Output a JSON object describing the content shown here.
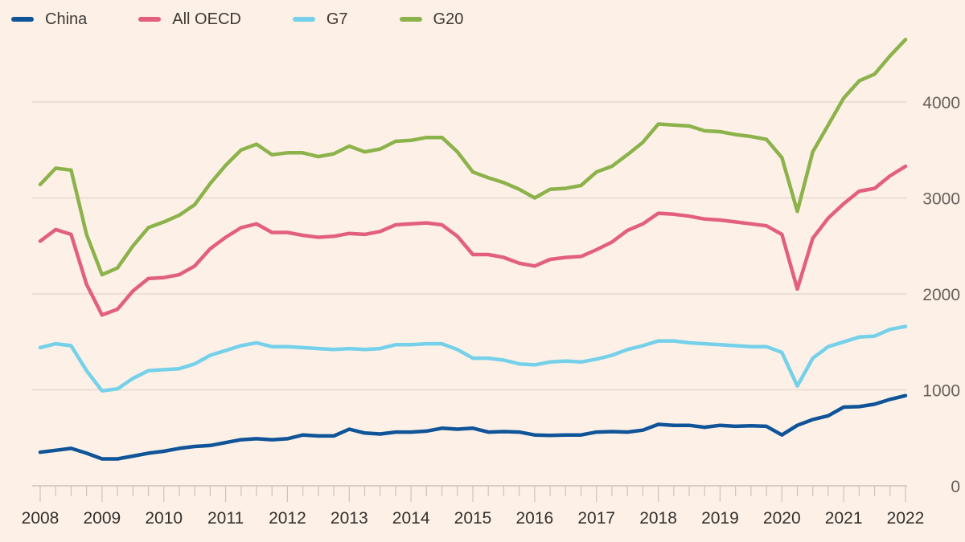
{
  "chart_data": {
    "type": "line",
    "title": "",
    "xlabel": "",
    "ylabel": "",
    "ylim": [
      0,
      4700
    ],
    "xlim": [
      2008,
      2022
    ],
    "y_ticks": [
      {
        "value": 0,
        "label": "0"
      },
      {
        "value": 1000,
        "label": "1000"
      },
      {
        "value": 2000,
        "label": "2000"
      },
      {
        "value": 3000,
        "label": "3000"
      },
      {
        "value": 4000,
        "label": "4000"
      }
    ],
    "x_ticks": [
      "2008",
      "2009",
      "2010",
      "2011",
      "2012",
      "2013",
      "2014",
      "2015",
      "2016",
      "2017",
      "2018",
      "2019",
      "2020",
      "2021",
      "2022"
    ],
    "x": [
      2008.0,
      2008.25,
      2008.5,
      2008.75,
      2009.0,
      2009.25,
      2009.5,
      2009.75,
      2010.0,
      2010.25,
      2010.5,
      2010.75,
      2011.0,
      2011.25,
      2011.5,
      2011.75,
      2012.0,
      2012.25,
      2012.5,
      2012.75,
      2013.0,
      2013.25,
      2013.5,
      2013.75,
      2014.0,
      2014.25,
      2014.5,
      2014.75,
      2015.0,
      2015.25,
      2015.5,
      2015.75,
      2016.0,
      2016.25,
      2016.5,
      2016.75,
      2017.0,
      2017.25,
      2017.5,
      2017.75,
      2018.0,
      2018.25,
      2018.5,
      2018.75,
      2019.0,
      2019.25,
      2019.5,
      2019.75,
      2020.0,
      2020.25,
      2020.5,
      2020.75,
      2021.0,
      2021.25,
      2021.5,
      2021.75,
      2022.0
    ],
    "series": [
      {
        "name": "China",
        "color": "#0f5499",
        "values": [
          350,
          370,
          390,
          340,
          280,
          280,
          310,
          340,
          360,
          390,
          410,
          420,
          450,
          480,
          490,
          480,
          490,
          530,
          520,
          520,
          590,
          550,
          540,
          560,
          560,
          570,
          600,
          590,
          600,
          560,
          565,
          560,
          530,
          525,
          530,
          530,
          560,
          565,
          560,
          580,
          640,
          630,
          630,
          610,
          630,
          620,
          625,
          620,
          530,
          630,
          690,
          730,
          820,
          825,
          850,
          900,
          940
        ]
      },
      {
        "name": "All OECD",
        "color": "#e25f80",
        "values": [
          2550,
          2670,
          2620,
          2100,
          1780,
          1840,
          2030,
          2160,
          2170,
          2200,
          2290,
          2470,
          2590,
          2690,
          2730,
          2640,
          2640,
          2610,
          2590,
          2600,
          2630,
          2620,
          2650,
          2720,
          2730,
          2740,
          2720,
          2600,
          2410,
          2410,
          2380,
          2320,
          2290,
          2360,
          2380,
          2390,
          2460,
          2540,
          2660,
          2730,
          2840,
          2830,
          2810,
          2780,
          2770,
          2750,
          2730,
          2710,
          2620,
          2050,
          2580,
          2790,
          2940,
          3070,
          3100,
          3230,
          3330
        ]
      },
      {
        "name": "G7",
        "color": "#75d1ea",
        "values": [
          1440,
          1480,
          1460,
          1200,
          990,
          1010,
          1120,
          1200,
          1210,
          1220,
          1270,
          1360,
          1410,
          1460,
          1490,
          1450,
          1450,
          1440,
          1430,
          1420,
          1430,
          1420,
          1430,
          1470,
          1470,
          1480,
          1480,
          1420,
          1330,
          1330,
          1310,
          1270,
          1260,
          1290,
          1300,
          1290,
          1320,
          1360,
          1420,
          1460,
          1510,
          1510,
          1490,
          1480,
          1470,
          1460,
          1450,
          1450,
          1390,
          1040,
          1330,
          1450,
          1500,
          1550,
          1560,
          1630,
          1660
        ]
      },
      {
        "name": "G20",
        "color": "#8cb34b",
        "values": [
          3140,
          3310,
          3290,
          2620,
          2200,
          2270,
          2500,
          2690,
          2750,
          2820,
          2930,
          3150,
          3340,
          3500,
          3560,
          3450,
          3470,
          3470,
          3430,
          3460,
          3540,
          3480,
          3510,
          3590,
          3600,
          3630,
          3630,
          3480,
          3270,
          3210,
          3160,
          3090,
          3000,
          3090,
          3100,
          3130,
          3270,
          3330,
          3450,
          3580,
          3770,
          3760,
          3750,
          3700,
          3690,
          3660,
          3640,
          3610,
          3420,
          2860,
          3480,
          3760,
          4040,
          4220,
          4290,
          4480,
          4650
        ]
      }
    ]
  }
}
